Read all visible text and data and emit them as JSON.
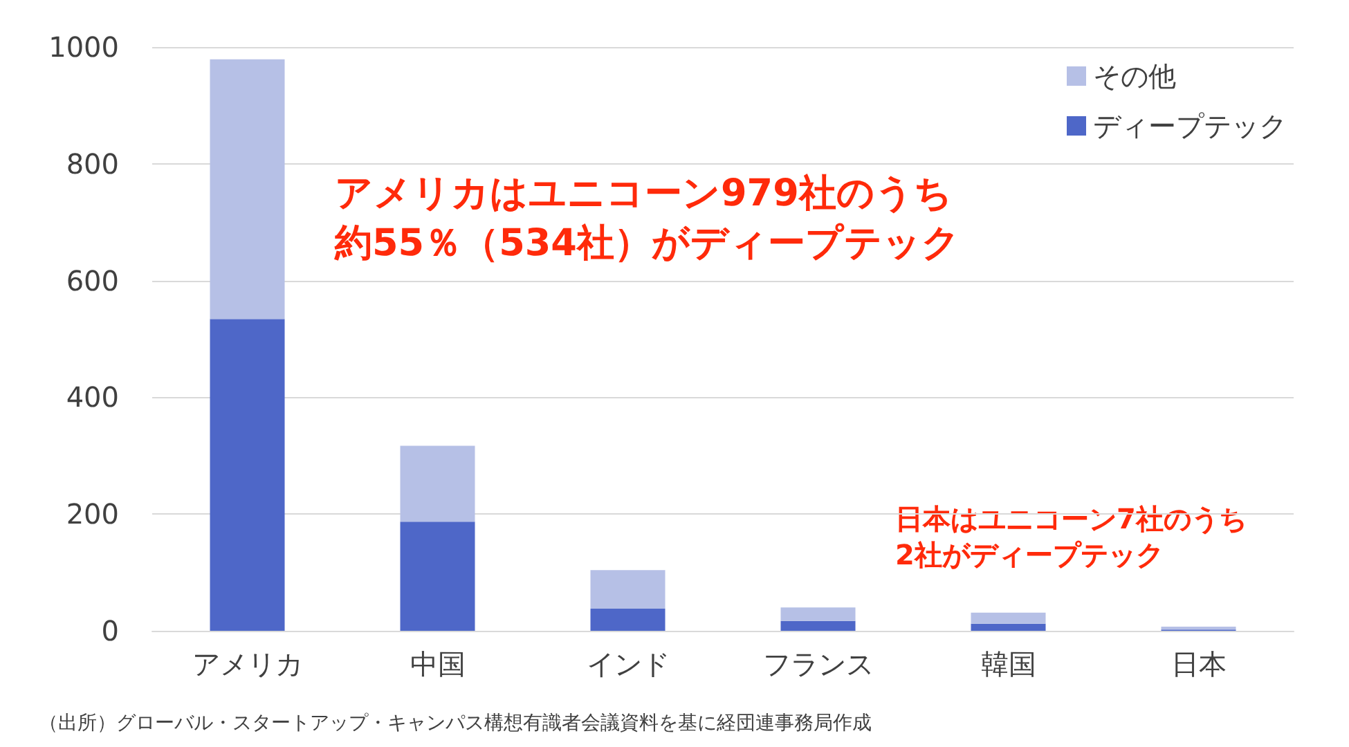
{
  "chart_data": {
    "type": "bar",
    "stacked": true,
    "categories": [
      "アメリカ",
      "中国",
      "インド",
      "フランス",
      "韓国",
      "日本"
    ],
    "series": [
      {
        "name": "ディープテック",
        "color": "#4e67c8",
        "values": [
          534,
          187,
          38,
          17,
          12,
          2
        ]
      },
      {
        "name": "その他",
        "color": "#b6c0e6",
        "values": [
          445,
          130,
          66,
          23,
          19,
          5
        ]
      }
    ],
    "ylim": [
      0,
      1000
    ],
    "yticks": [
      0,
      200,
      400,
      600,
      800,
      1000
    ],
    "grid": "y",
    "legend": "top right",
    "annotations": [
      "アメリカはユニコーン979社のうち",
      "約55％（534社）がディープテック",
      "日本はユニコーン7社のうち",
      "2社がディープテック",
      "（出所）グローバル・スタートアップ・キャンパス構想有識者会議資料を基に経団連事務局作成"
    ]
  }
}
